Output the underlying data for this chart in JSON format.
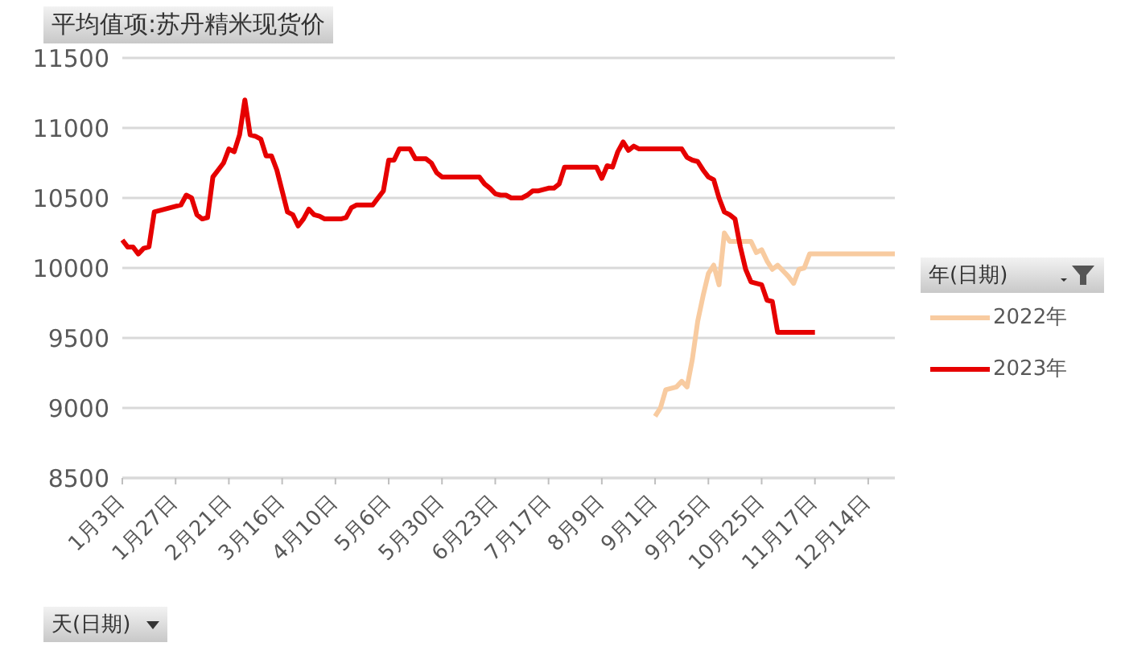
{
  "chart_data": {
    "type": "line",
    "title": "平均值项:苏丹精米现货价",
    "xlabel": "天(日期)",
    "legend_title": "年(日期)",
    "legend": "right",
    "grid": "y",
    "marker": "none",
    "line_style": "solid",
    "ylim": [
      8500,
      11500
    ],
    "yticks": [
      8500,
      9000,
      9500,
      10000,
      10500,
      11000,
      11500
    ],
    "categories": [
      "1月3日",
      null,
      null,
      null,
      null,
      null,
      null,
      null,
      null,
      null,
      "1月27日",
      null,
      null,
      null,
      null,
      null,
      null,
      null,
      null,
      null,
      "2月21日",
      null,
      null,
      null,
      null,
      null,
      null,
      null,
      null,
      null,
      "3月16日",
      null,
      null,
      null,
      null,
      null,
      null,
      null,
      null,
      null,
      "4月10日",
      null,
      null,
      null,
      null,
      null,
      null,
      null,
      null,
      null,
      "5月6日",
      null,
      null,
      null,
      null,
      null,
      null,
      null,
      null,
      null,
      "5月30日",
      null,
      null,
      null,
      null,
      null,
      null,
      null,
      null,
      null,
      "6月23日",
      null,
      null,
      null,
      null,
      null,
      null,
      null,
      null,
      null,
      "7月17日",
      null,
      null,
      null,
      null,
      null,
      null,
      null,
      null,
      null,
      "8月9日",
      null,
      null,
      null,
      null,
      null,
      null,
      null,
      null,
      null,
      "9月1日",
      null,
      null,
      null,
      null,
      null,
      null,
      null,
      null,
      null,
      "9月25日",
      null,
      null,
      null,
      null,
      null,
      null,
      null,
      null,
      null,
      "10月25日",
      null,
      null,
      null,
      null,
      null,
      null,
      null,
      null,
      null,
      "11月17日",
      null,
      null,
      null,
      null,
      null,
      null,
      null,
      null,
      null,
      "12月14日",
      null,
      null,
      null,
      null,
      null
    ],
    "series": [
      {
        "name": "2022年",
        "color": "#f8cba0",
        "values": [
          null,
          null,
          null,
          null,
          null,
          null,
          null,
          null,
          null,
          null,
          null,
          null,
          null,
          null,
          null,
          null,
          null,
          null,
          null,
          null,
          null,
          null,
          null,
          null,
          null,
          null,
          null,
          null,
          null,
          null,
          null,
          null,
          null,
          null,
          null,
          null,
          null,
          null,
          null,
          null,
          null,
          null,
          null,
          null,
          null,
          null,
          null,
          null,
          null,
          null,
          null,
          null,
          null,
          null,
          null,
          null,
          null,
          null,
          null,
          null,
          null,
          null,
          null,
          null,
          null,
          null,
          null,
          null,
          null,
          null,
          null,
          null,
          null,
          null,
          null,
          null,
          null,
          null,
          null,
          null,
          null,
          null,
          null,
          null,
          null,
          null,
          null,
          null,
          null,
          null,
          null,
          null,
          null,
          null,
          null,
          null,
          null,
          null,
          null,
          null,
          8940,
          9000,
          9130,
          9140,
          9150,
          9190,
          9150,
          9350,
          9620,
          9800,
          9960,
          10020,
          9880,
          10250,
          10190,
          10190,
          10190,
          10190,
          10190,
          10110,
          10130,
          10050,
          9990,
          10020,
          9980,
          9940,
          9890,
          9990,
          10000,
          10100,
          10100,
          10100,
          10100,
          10100,
          10100,
          10100,
          10100,
          10100,
          10100,
          10100,
          10100,
          10100,
          10100,
          10100,
          10100,
          10100
        ]
      },
      {
        "name": "2023年",
        "color": "#e60000",
        "values": [
          10200,
          10150,
          10150,
          10100,
          10140,
          10150,
          10400,
          10410,
          10420,
          10430,
          10440,
          10450,
          10520,
          10500,
          10380,
          10350,
          10360,
          10650,
          10700,
          10750,
          10850,
          10830,
          10950,
          11200,
          10950,
          10940,
          10920,
          10800,
          10800,
          10700,
          10550,
          10400,
          10380,
          10300,
          10350,
          10420,
          10380,
          10370,
          10350,
          10350,
          10350,
          10350,
          10360,
          10430,
          10450,
          10450,
          10450,
          10450,
          10500,
          10550,
          10770,
          10770,
          10850,
          10850,
          10850,
          10780,
          10780,
          10780,
          10750,
          10680,
          10650,
          10650,
          10650,
          10650,
          10650,
          10650,
          10650,
          10650,
          10600,
          10570,
          10530,
          10520,
          10520,
          10500,
          10500,
          10500,
          10520,
          10550,
          10550,
          10560,
          10570,
          10570,
          10600,
          10720,
          10720,
          10720,
          10720,
          10720,
          10720,
          10720,
          10640,
          10730,
          10720,
          10830,
          10900,
          10840,
          10870,
          10850,
          10850,
          10850,
          10850,
          10850,
          10850,
          10850,
          10850,
          10850,
          10790,
          10770,
          10760,
          10700,
          10650,
          10630,
          10500,
          10400,
          10380,
          10350,
          10150,
          9990,
          9900,
          9890,
          9880,
          9770,
          9760,
          9540,
          9540,
          9540,
          9540,
          9540,
          9540,
          9540,
          9540,
          null,
          null,
          null,
          null,
          null,
          null,
          null,
          null,
          null,
          null,
          null,
          null,
          null,
          null,
          null
        ]
      }
    ]
  }
}
